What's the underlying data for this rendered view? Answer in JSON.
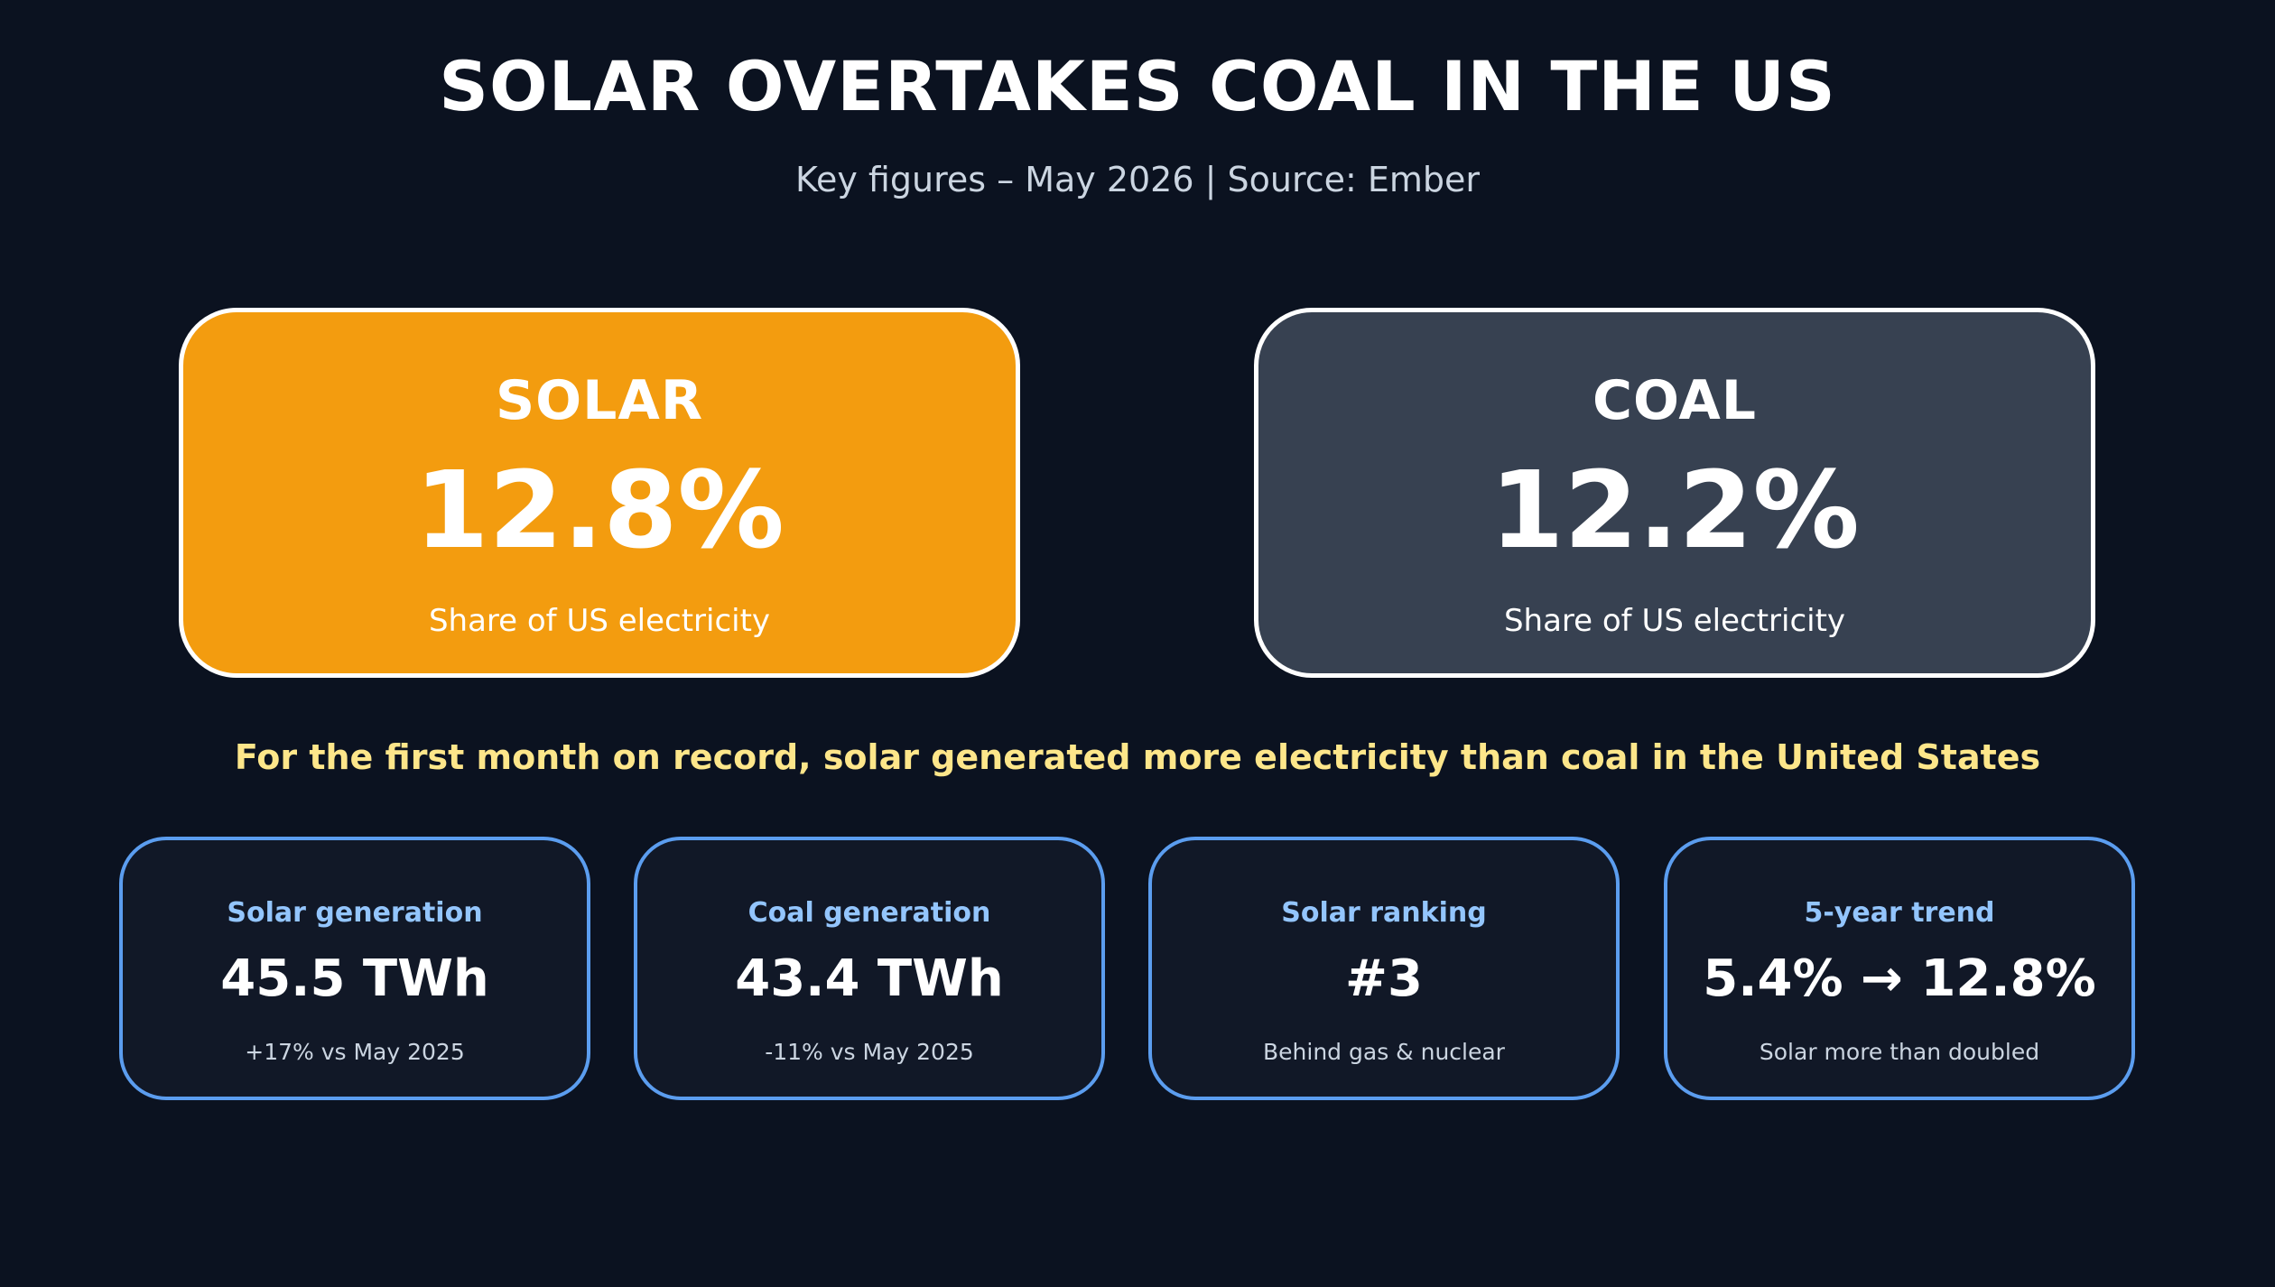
{
  "header": {
    "title": "SOLAR OVERTAKES COAL IN THE US",
    "subtitle": "Key figures – May 2026 | Source: Ember"
  },
  "comparison": [
    {
      "label": "SOLAR",
      "value": "12.8%",
      "caption": "Share of US electricity",
      "color": "#f39c0f"
    },
    {
      "label": "COAL",
      "value": "12.2%",
      "caption": "Share of US electricity",
      "color": "#374151"
    }
  ],
  "headline": "For the first month on record, solar generated more electricity than coal in the United States",
  "stats": [
    {
      "label": "Solar generation",
      "value": "45.5 TWh",
      "note": "+17% vs May 2025"
    },
    {
      "label": "Coal generation",
      "value": "43.4 TWh",
      "note": "-11% vs May 2025"
    },
    {
      "label": "Solar ranking",
      "value": "#3",
      "note": "Behind gas & nuclear"
    },
    {
      "label": "5-year trend",
      "value": "5.4% → 12.8%",
      "note": "Solar more than doubled"
    }
  ],
  "colors": {
    "background": "#0b1220",
    "accent_text": "#fde68a",
    "stat_border": "#5b9def",
    "stat_label": "#93c5fd"
  }
}
